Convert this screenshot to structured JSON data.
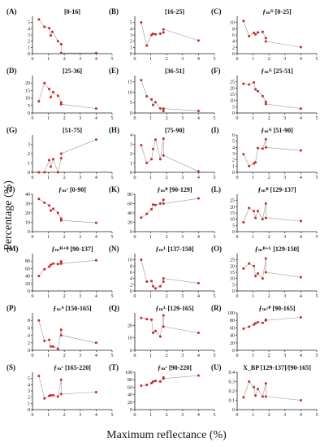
{
  "figure": {
    "ylabel": "Percentage (%)",
    "xlabel": "Maximum reflectance (%)"
  },
  "chart_data": [
    {
      "letter": "(A)",
      "title": "[0-16]",
      "type": "line",
      "xlim": [
        0,
        5
      ],
      "ylim": [
        0,
        6
      ],
      "yticks": [
        0,
        1,
        2,
        3,
        4,
        5
      ],
      "xticks": [
        0,
        1,
        2,
        3,
        4,
        5
      ],
      "points": [
        [
          0.4,
          5.5
        ],
        [
          0.75,
          4.3
        ],
        [
          1.05,
          4.1
        ],
        [
          1.15,
          2.9
        ],
        [
          1.25,
          3.5
        ],
        [
          1.6,
          2.0
        ],
        [
          1.8,
          1.5
        ],
        [
          1.8,
          0.1
        ],
        [
          4.0,
          0.1
        ]
      ]
    },
    {
      "letter": "(B)",
      "title": "[16-25]",
      "type": "line",
      "xlim": [
        0,
        5
      ],
      "ylim": [
        0,
        6
      ],
      "yticks": [
        0,
        1,
        2,
        3,
        4,
        5
      ],
      "xticks": [
        0,
        1,
        2,
        3,
        4,
        5
      ],
      "points": [
        [
          0.4,
          5.0
        ],
        [
          0.75,
          1.3
        ],
        [
          1.05,
          3.0
        ],
        [
          1.15,
          3.2
        ],
        [
          1.3,
          3.1
        ],
        [
          1.6,
          3.2
        ],
        [
          1.8,
          3.4
        ],
        [
          1.8,
          3.9
        ],
        [
          4.0,
          2.1
        ]
      ]
    },
    {
      "letter": "(C)",
      "title": "ƒₘᴳ [0-25]",
      "type": "line",
      "xlim": [
        0,
        5
      ],
      "ylim": [
        0,
        12
      ],
      "yticks": [
        0,
        2,
        4,
        6,
        8,
        10
      ],
      "xticks": [
        0,
        1,
        2,
        3,
        4,
        5
      ],
      "points": [
        [
          0.4,
          10.5
        ],
        [
          0.75,
          5.6
        ],
        [
          1.05,
          6.7
        ],
        [
          1.15,
          6.2
        ],
        [
          1.3,
          6.8
        ],
        [
          1.6,
          7.0
        ],
        [
          1.8,
          5.0
        ],
        [
          1.8,
          3.9
        ],
        [
          4.0,
          2.1
        ]
      ]
    },
    {
      "letter": "(D)",
      "title": "[25-36]",
      "type": "line",
      "xlim": [
        0,
        5
      ],
      "ylim": [
        0,
        25
      ],
      "yticks": [
        0,
        5,
        10,
        15,
        20
      ],
      "xticks": [
        0,
        1,
        2,
        3,
        4,
        5
      ],
      "points": [
        [
          0.4,
          7.8
        ],
        [
          0.75,
          20.0
        ],
        [
          1.05,
          16.0
        ],
        [
          1.15,
          10.5
        ],
        [
          1.3,
          14.0
        ],
        [
          1.6,
          11.5
        ],
        [
          1.8,
          7.0
        ],
        [
          1.8,
          5.8
        ],
        [
          4.0,
          3.0
        ]
      ]
    },
    {
      "letter": "(E)",
      "title": "[36-51]",
      "type": "line",
      "xlim": [
        0,
        5
      ],
      "ylim": [
        0,
        18
      ],
      "yticks": [
        0,
        5,
        10,
        15
      ],
      "xticks": [
        0,
        1,
        2,
        3,
        4,
        5
      ],
      "points": [
        [
          0.4,
          15.8
        ],
        [
          0.75,
          8.0
        ],
        [
          1.05,
          6.5
        ],
        [
          1.15,
          3.8
        ],
        [
          1.3,
          5.2
        ],
        [
          1.6,
          2.2
        ],
        [
          1.8,
          1.0
        ],
        [
          1.8,
          2.1
        ],
        [
          4.0,
          1.0
        ]
      ]
    },
    {
      "letter": "(F)",
      "title": "ƒₘᴳ [25-51]",
      "type": "line",
      "xlim": [
        0,
        5
      ],
      "ylim": [
        0,
        30
      ],
      "yticks": [
        0,
        5,
        10,
        15,
        20,
        25
      ],
      "xticks": [
        0,
        1,
        2,
        3,
        4,
        5
      ],
      "points": [
        [
          0.4,
          23.5
        ],
        [
          0.75,
          22.8
        ],
        [
          1.05,
          24.5
        ],
        [
          1.15,
          19.0
        ],
        [
          1.3,
          17.5
        ],
        [
          1.6,
          13.5
        ],
        [
          1.8,
          9.0
        ],
        [
          1.8,
          7.2
        ],
        [
          4.0,
          3.5
        ]
      ]
    },
    {
      "letter": "(G)",
      "title": "[51-75]",
      "type": "line",
      "xlim": [
        0,
        5
      ],
      "ylim": [
        0,
        4
      ],
      "yticks": [
        0,
        1,
        2,
        3
      ],
      "xticks": [
        0,
        1,
        2,
        3,
        4,
        5
      ],
      "points": [
        [
          0.4,
          0.0
        ],
        [
          0.75,
          0.0
        ],
        [
          1.05,
          1.3
        ],
        [
          1.15,
          0.6
        ],
        [
          1.3,
          1.4
        ],
        [
          1.6,
          0.0
        ],
        [
          1.8,
          1.5
        ],
        [
          1.8,
          2.0
        ],
        [
          4.0,
          3.5
        ]
      ]
    },
    {
      "letter": "(H)",
      "title": "[75-90]",
      "type": "line",
      "xlim": [
        0,
        5
      ],
      "ylim": [
        0,
        4
      ],
      "yticks": [
        0,
        1,
        2,
        3,
        4
      ],
      "xticks": [
        0,
        1,
        2,
        3,
        4,
        5
      ],
      "points": [
        [
          0.4,
          2.9
        ],
        [
          0.75,
          1.0
        ],
        [
          1.05,
          1.4
        ],
        [
          1.15,
          2.5
        ],
        [
          1.3,
          3.5
        ],
        [
          1.6,
          1.4
        ],
        [
          1.8,
          3.6
        ],
        [
          1.8,
          1.8
        ],
        [
          4.0,
          0.1
        ]
      ]
    },
    {
      "letter": "(I)",
      "title": "ƒₘᴳ [51-90]",
      "type": "line",
      "xlim": [
        0,
        5
      ],
      "ylim": [
        0,
        6
      ],
      "yticks": [
        0,
        1,
        2,
        3,
        4,
        5,
        6
      ],
      "xticks": [
        0,
        1,
        2,
        3,
        4,
        5
      ],
      "points": [
        [
          0.4,
          2.9
        ],
        [
          0.75,
          1.0
        ],
        [
          1.05,
          1.4
        ],
        [
          1.15,
          1.6
        ],
        [
          1.3,
          3.9
        ],
        [
          1.6,
          3.8
        ],
        [
          1.8,
          5.3
        ],
        [
          1.8,
          4.0
        ],
        [
          4.0,
          3.5
        ]
      ]
    },
    {
      "letter": "(J)",
      "title": "ƒₘᶜ [0-90]",
      "type": "line",
      "xlim": [
        0,
        5
      ],
      "ylim": [
        0,
        40
      ],
      "yticks": [
        0,
        10,
        20,
        30,
        40
      ],
      "xticks": [
        0,
        1,
        2,
        3,
        4,
        5
      ],
      "points": [
        [
          0.4,
          35.0
        ],
        [
          0.75,
          31.0
        ],
        [
          1.05,
          28.0
        ],
        [
          1.15,
          22.5
        ],
        [
          1.3,
          24.5
        ],
        [
          1.6,
          20.0
        ],
        [
          1.8,
          14.0
        ],
        [
          1.8,
          12.0
        ],
        [
          4.0,
          9.5
        ]
      ]
    },
    {
      "letter": "(K)",
      "title": "ƒₘᴮ [90-129]",
      "type": "line",
      "xlim": [
        0,
        5
      ],
      "ylim": [
        0,
        80
      ],
      "yticks": [
        0,
        20,
        40,
        60,
        80
      ],
      "xticks": [
        0,
        1,
        2,
        3,
        4,
        5
      ],
      "points": [
        [
          0.4,
          30.0
        ],
        [
          0.75,
          38.0
        ],
        [
          1.05,
          48.0
        ],
        [
          1.15,
          58.0
        ],
        [
          1.3,
          57.0
        ],
        [
          1.6,
          60.0
        ],
        [
          1.8,
          68.0
        ],
        [
          1.8,
          60.0
        ],
        [
          4.0,
          71.0
        ]
      ]
    },
    {
      "letter": "(L)",
      "title": "ƒₘᴮ [129-137]",
      "type": "line",
      "xlim": [
        0,
        5
      ],
      "ylim": [
        0,
        30
      ],
      "yticks": [
        0,
        5,
        10,
        15,
        20,
        25
      ],
      "xticks": [
        0,
        1,
        2,
        3,
        4,
        5
      ],
      "points": [
        [
          0.4,
          7.5
        ],
        [
          0.75,
          19.0
        ],
        [
          1.05,
          16.5
        ],
        [
          1.15,
          11.0
        ],
        [
          1.3,
          16.5
        ],
        [
          1.6,
          10.0
        ],
        [
          1.8,
          22.5
        ],
        [
          1.8,
          11.0
        ],
        [
          4.0,
          8.5
        ]
      ]
    },
    {
      "letter": "(M)",
      "title": "ƒₘᴴ⁺ᴮ [90-137]",
      "type": "line",
      "xlim": [
        0,
        5
      ],
      "ylim": [
        0,
        100
      ],
      "yticks": [
        0,
        20,
        40,
        60,
        80
      ],
      "xticks": [
        0,
        1,
        2,
        3,
        4,
        5
      ],
      "points": [
        [
          0.4,
          40.0
        ],
        [
          0.75,
          58.0
        ],
        [
          1.05,
          65.0
        ],
        [
          1.15,
          70.0
        ],
        [
          1.3,
          73.0
        ],
        [
          1.6,
          72.0
        ],
        [
          1.8,
          79.0
        ],
        [
          1.8,
          73.0
        ],
        [
          4.0,
          82.0
        ]
      ]
    },
    {
      "letter": "(N)",
      "title": "ƒₘᴸ [137-150]",
      "type": "line",
      "xlim": [
        0,
        5
      ],
      "ylim": [
        0,
        12
      ],
      "yticks": [
        0,
        2,
        4,
        6,
        8,
        10
      ],
      "xticks": [
        0,
        1,
        2,
        3,
        4,
        5
      ],
      "points": [
        [
          0.4,
          10.0
        ],
        [
          0.75,
          3.0
        ],
        [
          1.05,
          3.2
        ],
        [
          1.15,
          1.5
        ],
        [
          1.3,
          0.8
        ],
        [
          1.6,
          1.5
        ],
        [
          1.8,
          3.0
        ],
        [
          1.8,
          4.0
        ],
        [
          4.0,
          2.5
        ]
      ]
    },
    {
      "letter": "(O)",
      "title": "ƒₘᴮ⁺ᴸ [129-150]",
      "type": "line",
      "xlim": [
        0,
        5
      ],
      "ylim": [
        0,
        30
      ],
      "yticks": [
        0,
        5,
        10,
        15,
        20,
        25
      ],
      "xticks": [
        0,
        1,
        2,
        3,
        4,
        5
      ],
      "points": [
        [
          0.4,
          18.0
        ],
        [
          0.75,
          22.0
        ],
        [
          1.05,
          20.0
        ],
        [
          1.15,
          12.0
        ],
        [
          1.3,
          14.0
        ],
        [
          1.6,
          10.0
        ],
        [
          1.8,
          26.0
        ],
        [
          1.8,
          15.0
        ],
        [
          4.0,
          11.0
        ]
      ]
    },
    {
      "letter": "(P)",
      "title": "ƒₘᴬ [150-165]",
      "type": "line",
      "xlim": [
        0,
        5
      ],
      "ylim": [
        0,
        10
      ],
      "yticks": [
        0,
        2,
        4,
        6,
        8
      ],
      "xticks": [
        0,
        1,
        2,
        3,
        4,
        5
      ],
      "points": [
        [
          0.4,
          8.0
        ],
        [
          0.75,
          2.5
        ],
        [
          1.05,
          2.8
        ],
        [
          1.15,
          1.0
        ],
        [
          1.3,
          1.0
        ],
        [
          1.6,
          0.4
        ],
        [
          1.8,
          5.5
        ],
        [
          1.8,
          4.0
        ],
        [
          4.0,
          2.0
        ]
      ]
    },
    {
      "letter": "(Q)",
      "title": "ƒₘᴸ [129-165]",
      "type": "line",
      "xlim": [
        0,
        5
      ],
      "ylim": [
        0,
        30
      ],
      "yticks": [
        0,
        10,
        20
      ],
      "xticks": [
        0,
        1,
        2,
        3,
        4,
        5
      ],
      "points": [
        [
          0.4,
          26.0
        ],
        [
          0.75,
          25.0
        ],
        [
          1.05,
          24.5
        ],
        [
          1.15,
          14.0
        ],
        [
          1.3,
          15.5
        ],
        [
          1.6,
          11.0
        ],
        [
          1.8,
          28.0
        ],
        [
          1.8,
          19.0
        ],
        [
          4.0,
          14.0
        ]
      ]
    },
    {
      "letter": "(R)",
      "title": "ƒₘᶜᴾ [90-165]",
      "type": "line",
      "xlim": [
        0,
        5
      ],
      "ylim": [
        0,
        100
      ],
      "yticks": [
        0,
        20,
        40,
        60,
        80,
        100
      ],
      "xticks": [
        0,
        1,
        2,
        3,
        4,
        5
      ],
      "points": [
        [
          0.4,
          58.0
        ],
        [
          0.75,
          63.0
        ],
        [
          1.05,
          69.0
        ],
        [
          1.15,
          72.0
        ],
        [
          1.3,
          75.0
        ],
        [
          1.6,
          73.0
        ],
        [
          1.8,
          82.0
        ],
        [
          1.8,
          80.0
        ],
        [
          4.0,
          88.0
        ]
      ]
    },
    {
      "letter": "(S)",
      "title": "ƒₘᶜ [165-220]",
      "type": "line",
      "xlim": [
        0,
        5
      ],
      "ylim": [
        0,
        6
      ],
      "yticks": [
        0,
        1,
        2,
        3,
        4,
        5
      ],
      "xticks": [
        0,
        1,
        2,
        3,
        4,
        5
      ],
      "points": [
        [
          0.4,
          5.4
        ],
        [
          0.75,
          1.8
        ],
        [
          1.05,
          2.2
        ],
        [
          1.15,
          2.3
        ],
        [
          1.3,
          2.3
        ],
        [
          1.6,
          2.1
        ],
        [
          1.8,
          4.8
        ],
        [
          1.8,
          2.5
        ],
        [
          4.0,
          2.8
        ]
      ]
    },
    {
      "letter": "(T)",
      "title": "ƒₘᶜ [90-220]",
      "type": "line",
      "xlim": [
        0,
        5
      ],
      "ylim": [
        0,
        100
      ],
      "yticks": [
        0,
        20,
        40,
        60,
        80,
        100
      ],
      "xticks": [
        0,
        1,
        2,
        3,
        4,
        5
      ],
      "points": [
        [
          0.4,
          64.0
        ],
        [
          0.75,
          66.0
        ],
        [
          1.05,
          71.0
        ],
        [
          1.15,
          75.0
        ],
        [
          1.3,
          77.0
        ],
        [
          1.6,
          75.0
        ],
        [
          1.8,
          86.0
        ],
        [
          1.8,
          83.0
        ],
        [
          4.0,
          91.0
        ]
      ]
    },
    {
      "letter": "(U)",
      "title": "X_BP [129-137]/[90-165]",
      "type": "line",
      "xlim": [
        0,
        5
      ],
      "ylim": [
        0,
        0.4
      ],
      "yticks": [
        0,
        0.1,
        0.2,
        0.3,
        0.4
      ],
      "xticks": [
        0,
        1,
        2,
        3,
        4,
        5
      ],
      "points": [
        [
          0.4,
          0.13
        ],
        [
          0.75,
          0.3
        ],
        [
          1.05,
          0.24
        ],
        [
          1.15,
          0.15
        ],
        [
          1.3,
          0.22
        ],
        [
          1.6,
          0.14
        ],
        [
          1.8,
          0.28
        ],
        [
          1.8,
          0.14
        ],
        [
          4.0,
          0.1
        ]
      ]
    }
  ]
}
